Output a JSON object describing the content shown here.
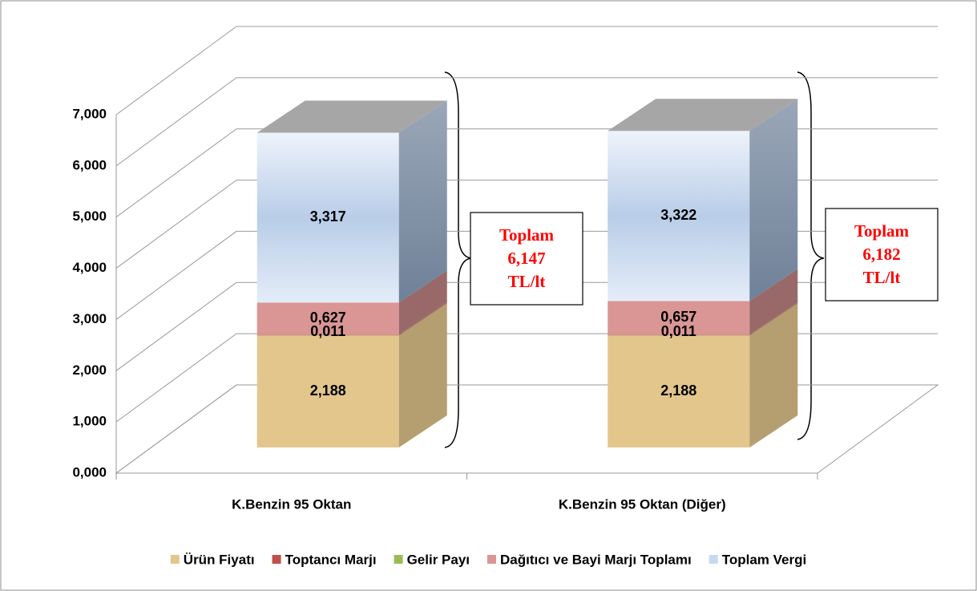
{
  "chart_data": {
    "type": "bar3d_stacked",
    "categories": [
      "K.Benzin 95 Oktan",
      "K.Benzin 95 Oktan (Diğer)"
    ],
    "series": [
      {
        "name": "Ürün Fiyatı",
        "color": "#e2c68c",
        "values": [
          2.188,
          2.188
        ],
        "value_labels": [
          "2,188",
          "2,188"
        ]
      },
      {
        "name": "Toptancı Marjı",
        "color": "#c0504d",
        "values": [
          0.011,
          0.011
        ],
        "value_labels": [
          "0,011",
          "0,011"
        ]
      },
      {
        "name": "Gelir Payı",
        "color": "#9bbb59",
        "values": [
          0.004,
          0.004
        ]
      },
      {
        "name": "Dağıtıcı ve Bayi Marjı Toplamı",
        "color": "#d99694",
        "values": [
          0.627,
          0.657
        ],
        "value_labels": [
          "0,627",
          "0,657"
        ]
      },
      {
        "name": "Toplam Vergi",
        "color": "#c6d9f1",
        "values": [
          3.317,
          3.322
        ],
        "value_labels": [
          "3,317",
          "3,322"
        ]
      }
    ],
    "ylim": [
      0,
      7
    ],
    "yticks": [
      {
        "value": 0,
        "label": "0,000"
      },
      {
        "value": 1,
        "label": "1,000"
      },
      {
        "value": 2,
        "label": "2,000"
      },
      {
        "value": 3,
        "label": "3,000"
      },
      {
        "value": 4,
        "label": "4,000"
      },
      {
        "value": 5,
        "label": "5,000"
      },
      {
        "value": 6,
        "label": "6,000"
      },
      {
        "value": 7,
        "label": "7,000"
      }
    ],
    "annotations": [
      [
        "Toplam",
        "6,147",
        "TL/lt"
      ],
      [
        "Toplam",
        "6,182",
        "TL/lt"
      ]
    ],
    "grid": true,
    "legend": "bottom"
  }
}
